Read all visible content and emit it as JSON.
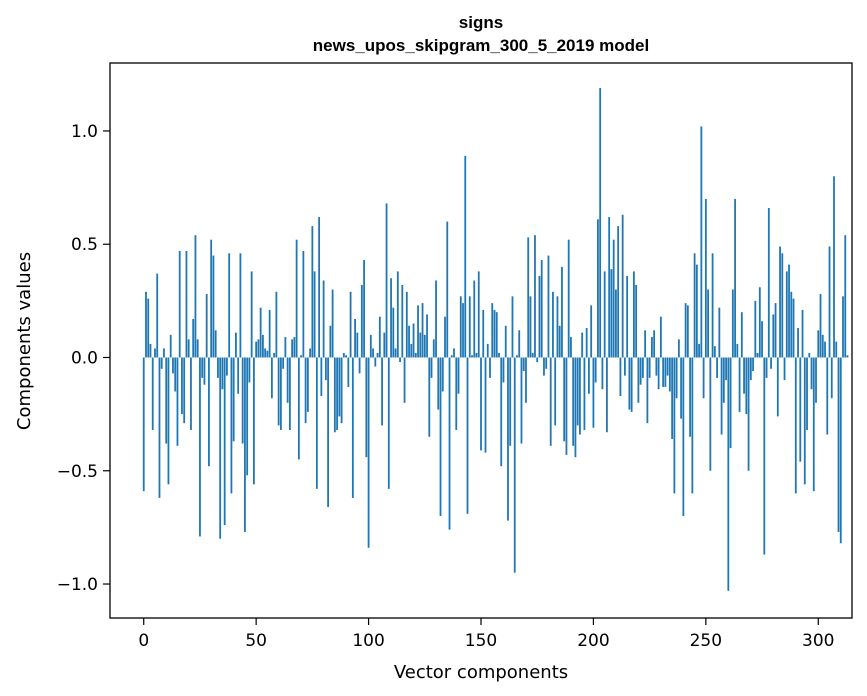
{
  "chart_data": {
    "type": "bar",
    "title_lines": [
      "signs",
      "news_upos_skipgram_300_5_2019 model"
    ],
    "xlabel": "Vector components",
    "ylabel": "Components values",
    "xlim": [
      -15,
      315
    ],
    "ylim": [
      -1.15,
      1.3
    ],
    "x_ticks": [
      0,
      50,
      100,
      150,
      200,
      250,
      300
    ],
    "x_tick_labels": [
      "0",
      "50",
      "100",
      "150",
      "200",
      "250",
      "300"
    ],
    "y_ticks": [
      -1.0,
      -0.5,
      0.0,
      0.5,
      1.0
    ],
    "y_tick_labels": [
      "−1.0",
      "−0.5",
      "0.0",
      "0.5",
      "1.0"
    ],
    "grid": false,
    "bar_color": "#1f77b4",
    "series": [
      {
        "name": "components",
        "values": [
          -0.59,
          0.29,
          0.26,
          0.06,
          -0.32,
          0.04,
          0.37,
          -0.62,
          -0.05,
          0.04,
          -0.38,
          -0.56,
          0.1,
          -0.07,
          -0.15,
          -0.39,
          0.47,
          -0.25,
          -0.29,
          0.47,
          0.08,
          -0.32,
          0.17,
          0.54,
          0.08,
          -0.79,
          -0.09,
          -0.12,
          0.28,
          -0.48,
          0.52,
          0.45,
          0.12,
          -0.09,
          -0.8,
          -0.14,
          -0.74,
          -0.08,
          0.46,
          -0.6,
          -0.37,
          0.11,
          -0.16,
          0.46,
          -0.38,
          -0.77,
          -0.52,
          -0.11,
          0.38,
          -0.56,
          0.07,
          0.08,
          0.22,
          0.1,
          0.04,
          0.03,
          0.21,
          -0.18,
          0.02,
          0.29,
          -0.3,
          -0.32,
          -0.05,
          0.09,
          -0.2,
          -0.32,
          0.08,
          0.09,
          0.52,
          -0.45,
          0.01,
          0.47,
          -0.29,
          -0.24,
          0.04,
          0.58,
          0.38,
          -0.58,
          0.62,
          -0.17,
          0.34,
          -0.1,
          -0.66,
          0.14,
          0.3,
          -0.33,
          -0.32,
          -0.26,
          -0.29,
          0.02,
          0.01,
          -0.13,
          0.29,
          -0.62,
          0.17,
          0.11,
          -0.07,
          0.32,
          0.43,
          -0.44,
          -0.84,
          0.1,
          0.04,
          -0.04,
          0.02,
          0.18,
          -0.3,
          0.11,
          0.68,
          -0.58,
          0.35,
          0.22,
          0.04,
          0.38,
          -0.02,
          0.32,
          -0.2,
          0.29,
          0.14,
          0.06,
          0.15,
          0.02,
          0.23,
          0.11,
          0.24,
          0.1,
          0.19,
          -0.35,
          -0.09,
          0.08,
          0.34,
          -0.23,
          -0.7,
          -0.15,
          0.18,
          0.6,
          -0.76,
          0.01,
          0.04,
          -0.32,
          -0.16,
          0.27,
          0.24,
          0.89,
          -0.69,
          0.27,
          0.01,
          0.34,
          0.02,
          0.38,
          -0.41,
          0.21,
          -0.42,
          0.06,
          -0.09,
          0.24,
          0.21,
          0.2,
          0.02,
          -0.48,
          -0.11,
          0.14,
          -0.72,
          -0.39,
          0.27,
          -0.95,
          0.01,
          0.12,
          -0.38,
          -0.06,
          -0.2,
          0.53,
          0.27,
          0.02,
          0.54,
          -0.02,
          0.36,
          0.43,
          -0.08,
          -0.05,
          0.45,
          -0.39,
          0.29,
          -0.3,
          0.27,
          0.14,
          0.4,
          -0.37,
          -0.43,
          0.52,
          0.09,
          -0.39,
          -0.44,
          -0.3,
          -0.34,
          0.11,
          -0.32,
          0.13,
          -0.16,
          0.23,
          -0.31,
          -0.11,
          0.61,
          1.19,
          -0.14,
          0.38,
          -0.33,
          0.62,
          0.39,
          0.52,
          0.3,
          0.58,
          -0.17,
          0.63,
          -0.08,
          0.36,
          -0.23,
          -0.24,
          0.38,
          0.32,
          -0.2,
          -0.12,
          -0.09,
          0.12,
          -0.29,
          -0.09,
          0.09,
          0.12,
          -0.08,
          -0.14,
          0.18,
          -0.13,
          -0.13,
          -0.08,
          -0.15,
          -0.36,
          -0.6,
          -0.18,
          0.08,
          -0.27,
          -0.7,
          0.24,
          0.23,
          -0.35,
          -0.6,
          0.46,
          0.41,
          0.06,
          1.02,
          -0.18,
          0.7,
          0.3,
          -0.5,
          0.46,
          0.05,
          -0.09,
          0.22,
          -0.34,
          -0.2,
          -0.1,
          -1.03,
          -0.4,
          0.3,
          0.7,
          0.06,
          -0.24,
          0.2,
          -0.16,
          -0.25,
          -0.5,
          -0.1,
          -0.06,
          0.25,
          0.02,
          0.31,
          0.16,
          -0.87,
          -0.09,
          0.66,
          -0.05,
          0.19,
          0.24,
          -0.26,
          0.49,
          0.46,
          -0.1,
          0.38,
          0.41,
          0.29,
          0.26,
          -0.6,
          0.13,
          -0.46,
          0.21,
          -0.56,
          -0.32,
          0.02,
          -0.14,
          -0.59,
          -0.2,
          0.12,
          0.28,
          0.1,
          0.07,
          -0.34,
          0.49,
          -0.18,
          0.8,
          0.07,
          -0.77,
          -0.82,
          0.27,
          0.54,
          0.01
        ]
      }
    ]
  }
}
